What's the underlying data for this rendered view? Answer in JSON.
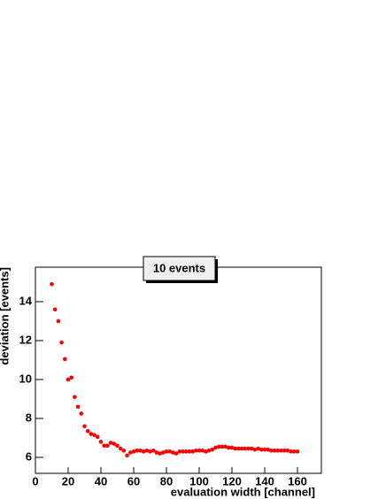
{
  "chart_data": {
    "type": "scatter",
    "title": "10 events",
    "x_label": "evaluation width [channel]",
    "y_label": "deviation [events]",
    "x": [
      10,
      12,
      14,
      16,
      18,
      20,
      22,
      24,
      26,
      28,
      30,
      32,
      34,
      36,
      38,
      40,
      42,
      44,
      46,
      48,
      50,
      52,
      54,
      56,
      58,
      60,
      62,
      64,
      66,
      68,
      70,
      72,
      74,
      76,
      78,
      80,
      82,
      84,
      86,
      88,
      90,
      92,
      94,
      96,
      98,
      100,
      102,
      104,
      106,
      108,
      110,
      112,
      114,
      116,
      118,
      120,
      122,
      124,
      126,
      128,
      130,
      132,
      134,
      136,
      138,
      140,
      142,
      144,
      146,
      148,
      150,
      152,
      154,
      156,
      158,
      160
    ],
    "values": [
      14.9,
      13.6,
      13.0,
      11.9,
      11.05,
      10.0,
      10.1,
      9.1,
      8.6,
      8.25,
      7.6,
      7.35,
      7.2,
      7.15,
      7.05,
      6.8,
      6.6,
      6.6,
      6.75,
      6.7,
      6.6,
      6.45,
      6.35,
      6.1,
      6.25,
      6.3,
      6.35,
      6.35,
      6.3,
      6.35,
      6.3,
      6.35,
      6.25,
      6.2,
      6.25,
      6.3,
      6.3,
      6.25,
      6.2,
      6.3,
      6.3,
      6.3,
      6.3,
      6.3,
      6.35,
      6.35,
      6.35,
      6.3,
      6.35,
      6.4,
      6.5,
      6.55,
      6.55,
      6.55,
      6.5,
      6.5,
      6.45,
      6.45,
      6.45,
      6.45,
      6.45,
      6.45,
      6.4,
      6.45,
      6.4,
      6.4,
      6.4,
      6.35,
      6.35,
      6.35,
      6.35,
      6.35,
      6.35,
      6.3,
      6.3,
      6.3
    ],
    "color": "#ff0000",
    "xlim": [
      0,
      174.6
    ],
    "xticks": [
      0,
      20,
      40,
      60,
      80,
      100,
      120,
      140,
      160
    ],
    "ylim": [
      5.18,
      15.77
    ],
    "yticks": [
      6,
      8,
      10,
      12,
      14
    ]
  }
}
